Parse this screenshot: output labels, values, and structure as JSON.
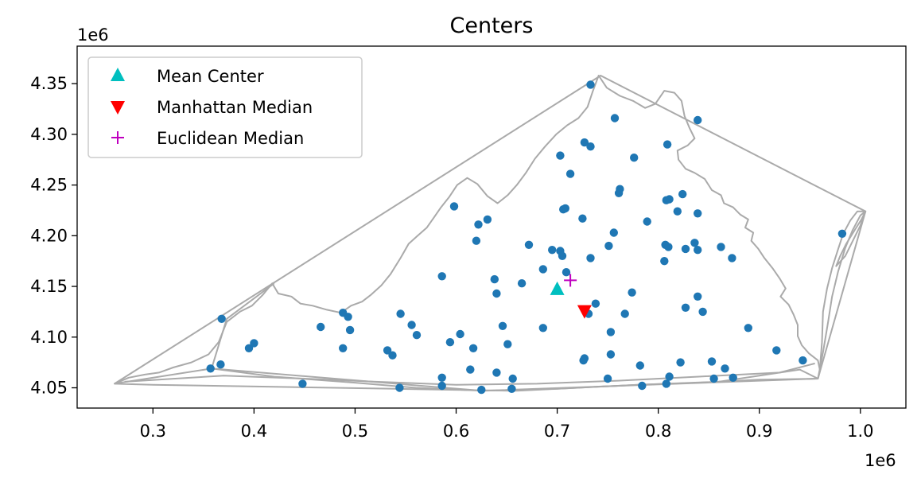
{
  "chart_data": {
    "type": "scatter",
    "title": "Centers",
    "xlabel": "",
    "ylabel": "",
    "x_offset_label": "1e6",
    "y_offset_label": "1e6",
    "xlim": [
      0.225,
      1.045
    ],
    "ylim": [
      4.03,
      4.387
    ],
    "xticks": [
      0.3,
      0.4,
      0.5,
      0.6,
      0.7,
      0.8,
      0.9,
      1.0
    ],
    "xtick_labels": [
      "0.3",
      "0.4",
      "0.5",
      "0.6",
      "0.7",
      "0.8",
      "0.9",
      "1.0"
    ],
    "yticks": [
      4.05,
      4.1,
      4.15,
      4.2,
      4.25,
      4.3,
      4.35
    ],
    "ytick_labels": [
      "4.05",
      "4.10",
      "4.15",
      "4.20",
      "4.25",
      "4.30",
      "4.35"
    ],
    "grid": false,
    "legend_position": "upper-left",
    "outline_color": "#aaaaaa",
    "points_color": "#1f77b4",
    "series": [
      {
        "name": "Mean Center",
        "marker": "triangle-up",
        "color": "#00bfbf",
        "points": [
          [
            0.7,
            4.147
          ]
        ]
      },
      {
        "name": "Manhattan Median",
        "marker": "triangle-down",
        "color": "#ff0000",
        "points": [
          [
            0.727,
            4.126
          ]
        ]
      },
      {
        "name": "Euclidean Median",
        "marker": "plus",
        "color": "#bf00bf",
        "points": [
          [
            0.713,
            4.156
          ]
        ]
      }
    ],
    "points": [
      [
        0.733,
        4.349
      ],
      [
        0.757,
        4.316
      ],
      [
        0.839,
        4.314
      ],
      [
        0.727,
        4.292
      ],
      [
        0.733,
        4.288
      ],
      [
        0.809,
        4.29
      ],
      [
        0.703,
        4.279
      ],
      [
        0.776,
        4.277
      ],
      [
        0.713,
        4.261
      ],
      [
        0.762,
        4.246
      ],
      [
        0.761,
        4.242
      ],
      [
        0.824,
        4.241
      ],
      [
        0.811,
        4.236
      ],
      [
        0.808,
        4.235
      ],
      [
        0.598,
        4.229
      ],
      [
        0.708,
        4.227
      ],
      [
        0.706,
        4.226
      ],
      [
        0.819,
        4.224
      ],
      [
        0.839,
        4.222
      ],
      [
        0.631,
        4.216
      ],
      [
        0.725,
        4.217
      ],
      [
        0.622,
        4.211
      ],
      [
        0.789,
        4.214
      ],
      [
        0.756,
        4.203
      ],
      [
        0.982,
        4.202
      ],
      [
        0.62,
        4.195
      ],
      [
        0.836,
        4.193
      ],
      [
        0.672,
        4.191
      ],
      [
        0.807,
        4.191
      ],
      [
        0.81,
        4.189
      ],
      [
        0.751,
        4.19
      ],
      [
        0.862,
        4.189
      ],
      [
        0.827,
        4.187
      ],
      [
        0.839,
        4.186
      ],
      [
        0.695,
        4.186
      ],
      [
        0.703,
        4.185
      ],
      [
        0.705,
        4.18
      ],
      [
        0.733,
        4.178
      ],
      [
        0.873,
        4.178
      ],
      [
        0.806,
        4.175
      ],
      [
        0.686,
        4.167
      ],
      [
        0.709,
        4.164
      ],
      [
        0.586,
        4.16
      ],
      [
        0.638,
        4.157
      ],
      [
        0.665,
        4.153
      ],
      [
        0.64,
        4.143
      ],
      [
        0.774,
        4.144
      ],
      [
        0.839,
        4.14
      ],
      [
        0.738,
        4.133
      ],
      [
        0.827,
        4.129
      ],
      [
        0.844,
        4.125
      ],
      [
        0.731,
        4.123
      ],
      [
        0.767,
        4.123
      ],
      [
        0.545,
        4.123
      ],
      [
        0.488,
        4.124
      ],
      [
        0.493,
        4.12
      ],
      [
        0.368,
        4.118
      ],
      [
        0.556,
        4.112
      ],
      [
        0.646,
        4.111
      ],
      [
        0.466,
        4.11
      ],
      [
        0.686,
        4.109
      ],
      [
        0.889,
        4.109
      ],
      [
        0.495,
        4.107
      ],
      [
        0.753,
        4.105
      ],
      [
        0.604,
        4.103
      ],
      [
        0.561,
        4.102
      ],
      [
        0.594,
        4.095
      ],
      [
        0.4,
        4.094
      ],
      [
        0.651,
        4.093
      ],
      [
        0.395,
        4.089
      ],
      [
        0.488,
        4.089
      ],
      [
        0.617,
        4.089
      ],
      [
        0.532,
        4.087
      ],
      [
        0.917,
        4.087
      ],
      [
        0.537,
        4.082
      ],
      [
        0.753,
        4.083
      ],
      [
        0.727,
        4.079
      ],
      [
        0.943,
        4.077
      ],
      [
        0.726,
        4.077
      ],
      [
        0.822,
        4.075
      ],
      [
        0.853,
        4.076
      ],
      [
        0.367,
        4.073
      ],
      [
        0.782,
        4.072
      ],
      [
        0.357,
        4.069
      ],
      [
        0.866,
        4.069
      ],
      [
        0.614,
        4.068
      ],
      [
        0.64,
        4.065
      ],
      [
        0.811,
        4.061
      ],
      [
        0.586,
        4.06
      ],
      [
        0.874,
        4.06
      ],
      [
        0.855,
        4.059
      ],
      [
        0.656,
        4.059
      ],
      [
        0.75,
        4.059
      ],
      [
        0.448,
        4.054
      ],
      [
        0.808,
        4.054
      ],
      [
        0.586,
        4.052
      ],
      [
        0.784,
        4.052
      ],
      [
        0.544,
        4.05
      ],
      [
        0.655,
        4.049
      ],
      [
        0.625,
        4.048
      ]
    ],
    "hull": [
      [
        0.262,
        4.054
      ],
      [
        0.358,
        4.069
      ],
      [
        0.626,
        4.047
      ],
      [
        0.958,
        4.059
      ],
      [
        1.005,
        4.224
      ],
      [
        0.743,
        4.358
      ]
    ],
    "state_outline": [
      [
        0.262,
        4.054
      ],
      [
        0.276,
        4.06
      ],
      [
        0.292,
        4.063
      ],
      [
        0.306,
        4.065
      ],
      [
        0.32,
        4.07
      ],
      [
        0.338,
        4.075
      ],
      [
        0.355,
        4.083
      ],
      [
        0.365,
        4.095
      ],
      [
        0.373,
        4.115
      ],
      [
        0.386,
        4.125
      ],
      [
        0.398,
        4.131
      ],
      [
        0.409,
        4.142
      ],
      [
        0.418,
        4.153
      ],
      [
        0.424,
        4.143
      ],
      [
        0.437,
        4.14
      ],
      [
        0.446,
        4.133
      ],
      [
        0.458,
        4.131
      ],
      [
        0.472,
        4.127
      ],
      [
        0.486,
        4.124
      ],
      [
        0.496,
        4.131
      ],
      [
        0.507,
        4.135
      ],
      [
        0.516,
        4.142
      ],
      [
        0.526,
        4.151
      ],
      [
        0.535,
        4.162
      ],
      [
        0.545,
        4.178
      ],
      [
        0.553,
        4.192
      ],
      [
        0.562,
        4.2
      ],
      [
        0.571,
        4.208
      ],
      [
        0.578,
        4.218
      ],
      [
        0.585,
        4.228
      ],
      [
        0.593,
        4.238
      ],
      [
        0.601,
        4.25
      ],
      [
        0.611,
        4.257
      ],
      [
        0.621,
        4.251
      ],
      [
        0.631,
        4.239
      ],
      [
        0.641,
        4.232
      ],
      [
        0.651,
        4.24
      ],
      [
        0.66,
        4.25
      ],
      [
        0.669,
        4.262
      ],
      [
        0.678,
        4.276
      ],
      [
        0.688,
        4.288
      ],
      [
        0.699,
        4.3
      ],
      [
        0.71,
        4.309
      ],
      [
        0.721,
        4.316
      ],
      [
        0.73,
        4.327
      ],
      [
        0.735,
        4.342
      ],
      [
        0.741,
        4.358
      ],
      [
        0.749,
        4.346
      ],
      [
        0.762,
        4.338
      ],
      [
        0.775,
        4.333
      ],
      [
        0.787,
        4.326
      ],
      [
        0.797,
        4.33
      ],
      [
        0.806,
        4.343
      ],
      [
        0.816,
        4.341
      ],
      [
        0.823,
        4.333
      ],
      [
        0.826,
        4.318
      ],
      [
        0.831,
        4.306
      ],
      [
        0.836,
        4.296
      ],
      [
        0.829,
        4.289
      ],
      [
        0.819,
        4.284
      ],
      [
        0.82,
        4.275
      ],
      [
        0.827,
        4.266
      ],
      [
        0.836,
        4.262
      ],
      [
        0.846,
        4.256
      ],
      [
        0.853,
        4.245
      ],
      [
        0.862,
        4.24
      ],
      [
        0.865,
        4.232
      ],
      [
        0.874,
        4.228
      ],
      [
        0.881,
        4.221
      ],
      [
        0.889,
        4.216
      ],
      [
        0.886,
        4.208
      ],
      [
        0.894,
        4.203
      ],
      [
        0.892,
        4.195
      ],
      [
        0.899,
        4.187
      ],
      [
        0.905,
        4.178
      ],
      [
        0.913,
        4.168
      ],
      [
        0.92,
        4.158
      ],
      [
        0.926,
        4.148
      ],
      [
        0.921,
        4.14
      ],
      [
        0.929,
        4.132
      ],
      [
        0.934,
        4.122
      ],
      [
        0.938,
        4.112
      ],
      [
        0.938,
        4.101
      ],
      [
        0.942,
        4.092
      ],
      [
        0.949,
        4.084
      ],
      [
        0.958,
        4.077
      ],
      [
        0.96,
        4.067
      ],
      [
        0.958,
        4.059
      ],
      [
        0.9,
        4.058
      ],
      [
        0.84,
        4.055
      ],
      [
        0.78,
        4.053
      ],
      [
        0.72,
        4.05
      ],
      [
        0.66,
        4.047
      ],
      [
        0.6,
        4.048
      ],
      [
        0.54,
        4.049
      ],
      [
        0.48,
        4.05
      ],
      [
        0.42,
        4.051
      ],
      [
        0.36,
        4.052
      ],
      [
        0.3,
        4.053
      ],
      [
        0.262,
        4.054
      ]
    ],
    "eastern_shore": [
      [
        0.958,
        4.059
      ],
      [
        0.963,
        4.085
      ],
      [
        0.968,
        4.115
      ],
      [
        0.972,
        4.14
      ],
      [
        0.978,
        4.165
      ],
      [
        0.985,
        4.188
      ],
      [
        0.992,
        4.205
      ],
      [
        1.0,
        4.22
      ],
      [
        1.005,
        4.224
      ],
      [
        0.997,
        4.224
      ],
      [
        0.99,
        4.215
      ],
      [
        0.983,
        4.202
      ],
      [
        0.978,
        4.187
      ],
      [
        0.972,
        4.168
      ],
      [
        0.967,
        4.148
      ],
      [
        0.963,
        4.125
      ],
      [
        0.962,
        4.095
      ],
      [
        0.96,
        4.07
      ]
    ],
    "eastern_shore_2": [
      [
        1.005,
        4.224
      ],
      [
        1.001,
        4.216
      ],
      [
        0.994,
        4.205
      ],
      [
        0.986,
        4.192
      ],
      [
        0.98,
        4.18
      ],
      [
        0.976,
        4.17
      ],
      [
        0.985,
        4.18
      ],
      [
        0.993,
        4.196
      ],
      [
        1.0,
        4.21
      ],
      [
        1.005,
        4.224
      ]
    ],
    "southern_boundary_2": [
      [
        0.358,
        4.069
      ],
      [
        0.42,
        4.061
      ],
      [
        0.5,
        4.055
      ],
      [
        0.56,
        4.05
      ],
      [
        0.626,
        4.047
      ],
      [
        0.7,
        4.049
      ],
      [
        0.78,
        4.053
      ],
      [
        0.86,
        4.056
      ],
      [
        0.94,
        4.068
      ],
      [
        0.958,
        4.059
      ]
    ],
    "southern_boundary_3": [
      [
        0.272,
        4.056
      ],
      [
        0.37,
        4.062
      ],
      [
        0.45,
        4.059
      ],
      [
        0.52,
        4.056
      ],
      [
        0.6,
        4.053
      ],
      [
        0.68,
        4.054
      ],
      [
        0.76,
        4.057
      ],
      [
        0.84,
        4.061
      ],
      [
        0.92,
        4.065
      ],
      [
        0.955,
        4.074
      ]
    ],
    "hull_inner": [
      [
        0.358,
        4.069
      ],
      [
        0.373,
        4.118
      ],
      [
        0.42,
        4.153
      ]
    ]
  }
}
